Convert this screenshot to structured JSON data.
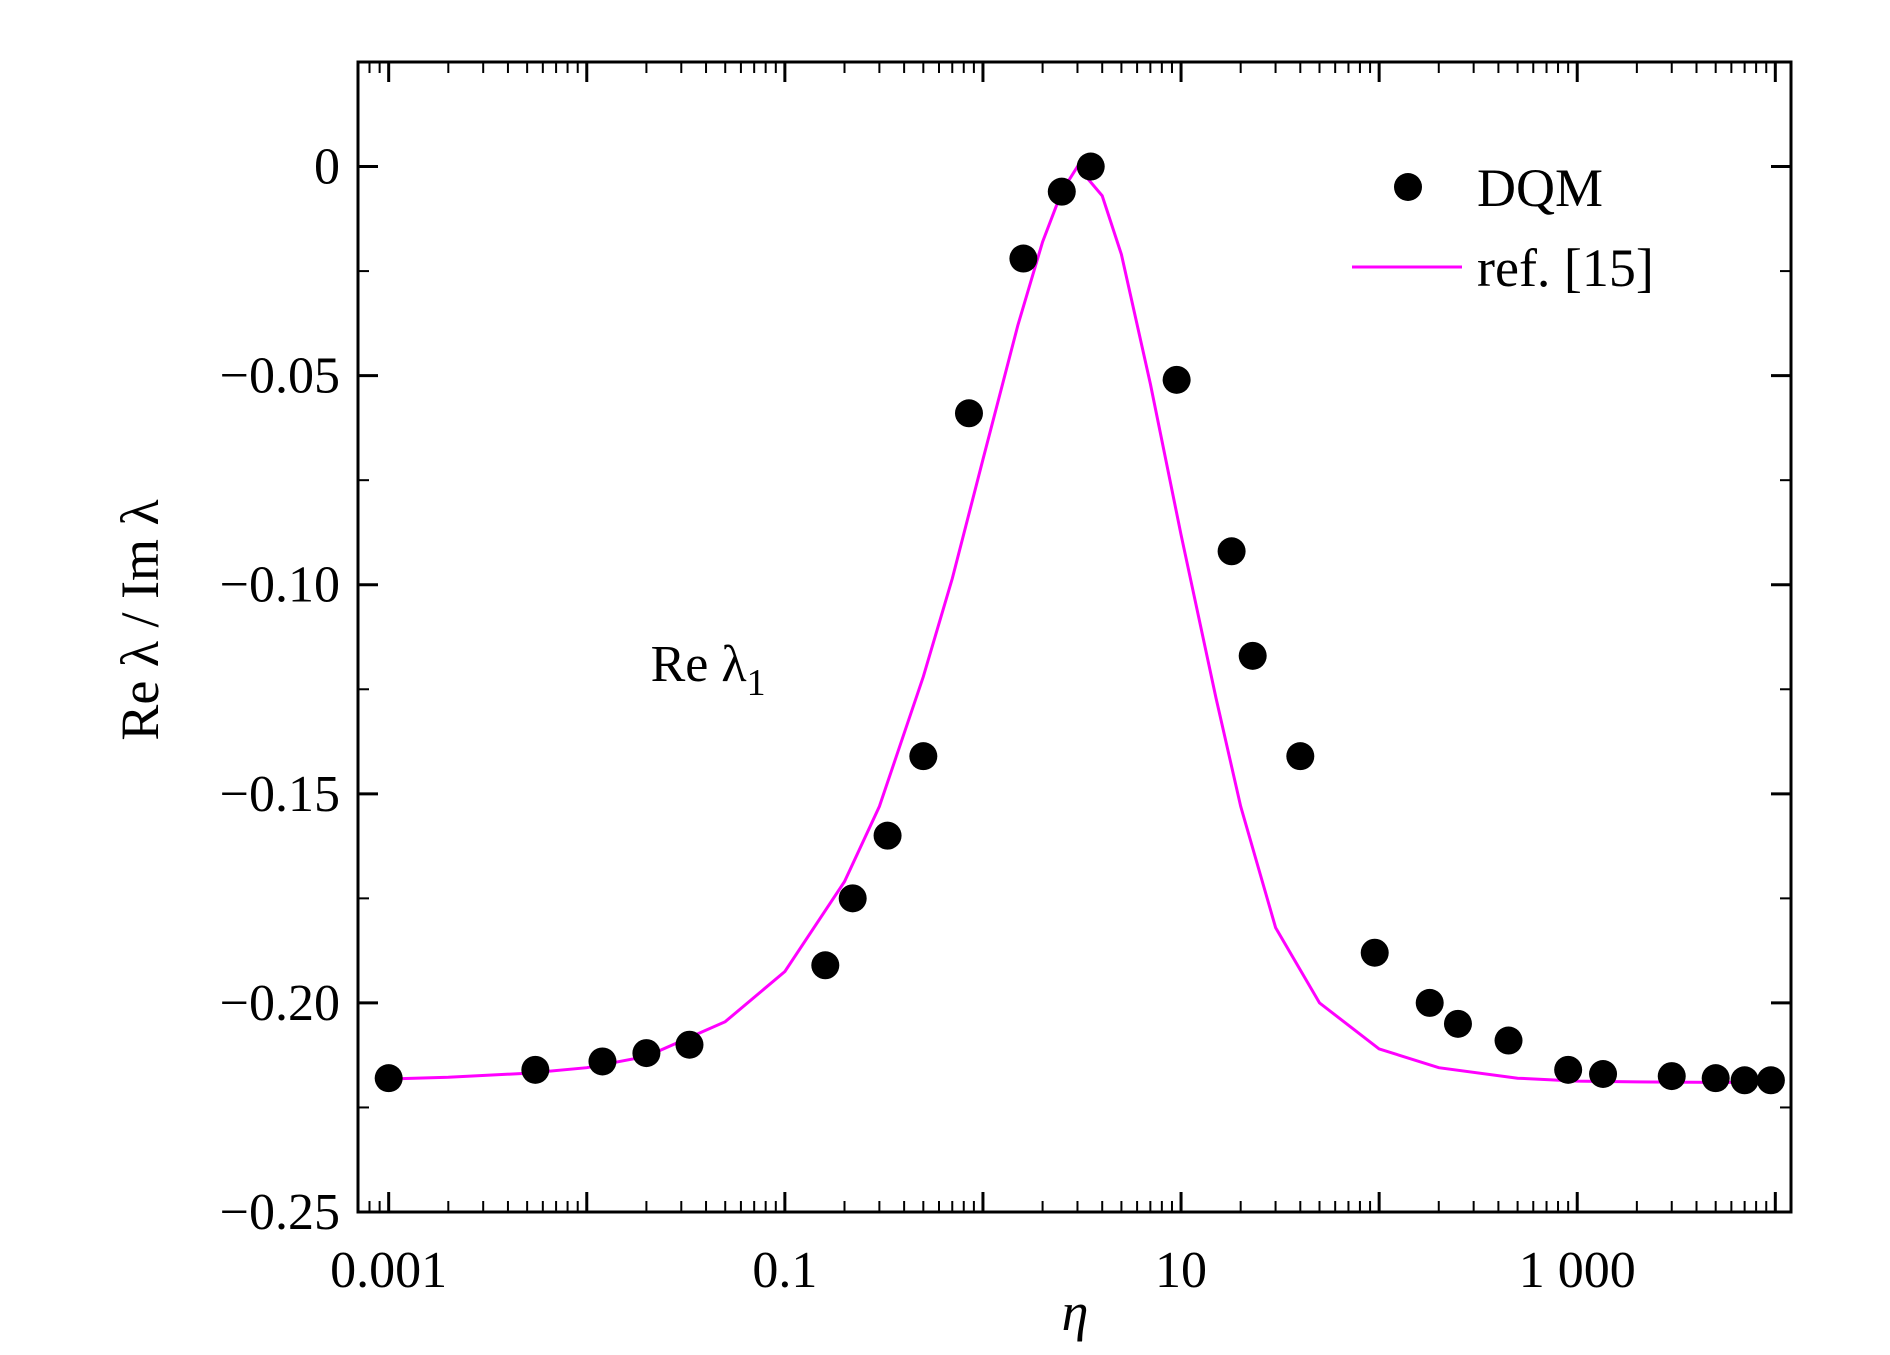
{
  "chart_data": {
    "type": "scatter",
    "xlabel": "η",
    "ylabel": "Re λ / Im λ",
    "xscale": "log",
    "xlim": [
      0.0007,
      12000
    ],
    "ylim": [
      -0.25,
      0.025
    ],
    "x_tick_values": [
      0.001,
      0.1,
      10,
      1000
    ],
    "x_tick_labels": [
      "0.001",
      "0.1",
      "10",
      "1 000"
    ],
    "y_tick_values": [
      0,
      -0.05,
      -0.1,
      -0.15,
      -0.2,
      -0.25
    ],
    "y_tick_labels": [
      "0",
      "−0.05",
      "−0.10",
      "−0.15",
      "−0.20",
      "−0.25"
    ],
    "grid": false,
    "legend_position": "top-right",
    "annotation": {
      "text_main": "Re λ",
      "text_sub": "1",
      "x": 0.021,
      "y": -0.123
    },
    "series": [
      {
        "name": "DQM",
        "kind": "markers",
        "color": "#000000",
        "x": [
          0.001,
          0.0055,
          0.012,
          0.02,
          0.033,
          0.16,
          0.22,
          0.33,
          0.5,
          0.85,
          1.6,
          2.5,
          3.5,
          9.5,
          18,
          23,
          40,
          95,
          180,
          250,
          450,
          900,
          1350,
          3000,
          5000,
          7000,
          9500
        ],
        "y": [
          -0.218,
          -0.216,
          -0.214,
          -0.212,
          -0.21,
          -0.191,
          -0.175,
          -0.16,
          -0.141,
          -0.059,
          -0.022,
          -0.006,
          0.0,
          -0.051,
          -0.092,
          -0.117,
          -0.141,
          -0.188,
          -0.2,
          -0.205,
          -0.209,
          -0.216,
          -0.217,
          -0.2175,
          -0.218,
          -0.2185,
          -0.2185
        ]
      },
      {
        "name": "ref. [15]",
        "kind": "line",
        "color": "#ff00ff",
        "x": [
          0.001,
          0.002,
          0.005,
          0.01,
          0.02,
          0.05,
          0.1,
          0.2,
          0.3,
          0.5,
          0.7,
          1.0,
          1.5,
          2.0,
          2.5,
          3.0,
          4.0,
          5.0,
          7.0,
          10,
          15,
          20,
          30,
          50,
          100,
          200,
          500,
          1000,
          2000,
          5000,
          10000
        ],
        "y": [
          -0.2182,
          -0.2178,
          -0.2168,
          -0.2155,
          -0.2128,
          -0.2045,
          -0.1925,
          -0.171,
          -0.153,
          -0.122,
          -0.0985,
          -0.07,
          -0.038,
          -0.018,
          -0.006,
          0.0,
          -0.007,
          -0.021,
          -0.052,
          -0.088,
          -0.127,
          -0.153,
          -0.182,
          -0.2,
          -0.211,
          -0.2155,
          -0.218,
          -0.2187,
          -0.2189,
          -0.219,
          -0.219
        ]
      }
    ]
  }
}
